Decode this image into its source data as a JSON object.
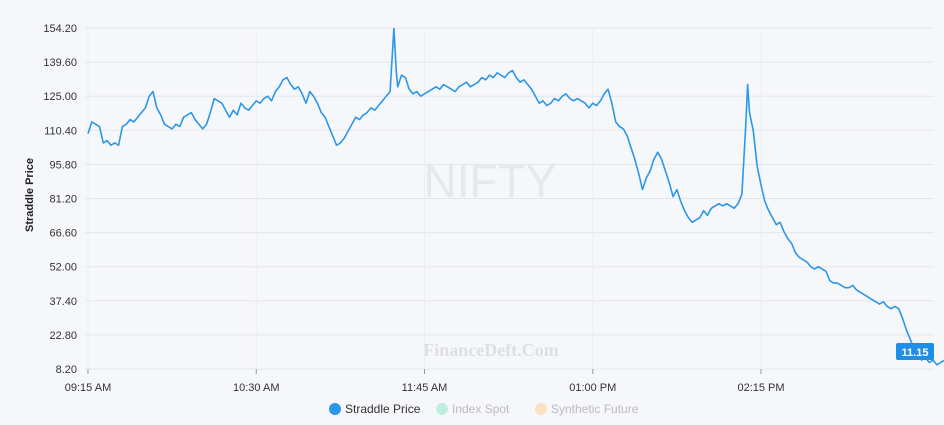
{
  "chart_data": {
    "type": "line",
    "watermark": "NIFTY",
    "credit": "FinanceDeft.Com",
    "ylabel": "Straddle Price",
    "xlabel": "",
    "ylim": [
      8.2,
      154.2
    ],
    "grid": true,
    "y_ticks": [
      "154.20",
      "139.60",
      "125.00",
      "110.40",
      "95.80",
      "81.20",
      "66.60",
      "52.00",
      "37.40",
      "22.80",
      "8.20"
    ],
    "x_ticks": [
      "09:15 AM",
      "10:30 AM",
      "11:45 AM",
      "01:00 PM",
      "02:15 PM"
    ],
    "last_value_label": "11.15",
    "legend": [
      {
        "name": "Straddle Price",
        "color": "#2c97e8",
        "active": true
      },
      {
        "name": "Index Spot",
        "color": "#bfeedd",
        "active": false
      },
      {
        "name": "Synthetic Future",
        "color": "#f7e3c2",
        "active": false
      }
    ],
    "series": [
      {
        "name": "Straddle Price",
        "color": "#2c97e8",
        "points": [
          [
            0,
            109
          ],
          [
            1,
            114
          ],
          [
            2,
            113
          ],
          [
            3,
            112
          ],
          [
            4,
            105
          ],
          [
            5,
            106
          ],
          [
            6,
            104
          ],
          [
            7,
            105
          ],
          [
            8,
            104
          ],
          [
            9,
            112
          ],
          [
            10,
            113
          ],
          [
            11,
            115
          ],
          [
            12,
            114
          ],
          [
            13,
            116
          ],
          [
            14,
            118
          ],
          [
            15,
            120
          ],
          [
            16,
            125
          ],
          [
            17,
            127
          ],
          [
            18,
            120
          ],
          [
            19,
            117
          ],
          [
            20,
            113
          ],
          [
            21,
            112
          ],
          [
            22,
            111
          ],
          [
            23,
            113
          ],
          [
            24,
            112
          ],
          [
            25,
            116
          ],
          [
            26,
            117
          ],
          [
            27,
            118
          ],
          [
            28,
            115
          ],
          [
            29,
            113
          ],
          [
            30,
            111
          ],
          [
            31,
            113
          ],
          [
            32,
            118
          ],
          [
            33,
            124
          ],
          [
            34,
            123
          ],
          [
            35,
            122
          ],
          [
            36,
            119
          ],
          [
            37,
            116
          ],
          [
            38,
            119
          ],
          [
            39,
            117
          ],
          [
            40,
            122
          ],
          [
            41,
            120
          ],
          [
            42,
            119
          ],
          [
            43,
            121
          ],
          [
            44,
            123
          ],
          [
            45,
            122
          ],
          [
            46,
            124
          ],
          [
            47,
            125
          ],
          [
            48,
            123
          ],
          [
            49,
            127
          ],
          [
            50,
            129
          ],
          [
            51,
            132
          ],
          [
            52,
            133
          ],
          [
            53,
            130
          ],
          [
            54,
            128
          ],
          [
            55,
            129
          ],
          [
            56,
            126
          ],
          [
            57,
            122
          ],
          [
            58,
            127
          ],
          [
            59,
            125
          ],
          [
            60,
            122
          ],
          [
            61,
            118
          ],
          [
            62,
            116
          ],
          [
            63,
            112
          ],
          [
            64,
            108
          ],
          [
            65,
            104
          ],
          [
            66,
            105
          ],
          [
            67,
            107
          ],
          [
            68,
            110
          ],
          [
            69,
            113
          ],
          [
            70,
            116
          ],
          [
            71,
            115
          ],
          [
            72,
            117
          ],
          [
            73,
            118
          ],
          [
            74,
            120
          ],
          [
            75,
            119
          ],
          [
            76,
            121
          ],
          [
            77,
            123
          ],
          [
            78,
            125
          ],
          [
            79,
            127
          ],
          [
            80,
            154
          ],
          [
            80.6,
            136
          ],
          [
            81,
            129
          ],
          [
            82,
            134
          ],
          [
            83,
            133
          ],
          [
            84,
            128
          ],
          [
            85,
            126
          ],
          [
            86,
            127
          ],
          [
            87,
            125
          ],
          [
            88,
            126
          ],
          [
            89,
            127
          ],
          [
            90,
            128
          ],
          [
            91,
            129
          ],
          [
            92,
            128
          ],
          [
            93,
            130
          ],
          [
            94,
            129
          ],
          [
            95,
            128
          ],
          [
            96,
            127
          ],
          [
            97,
            129
          ],
          [
            98,
            130
          ],
          [
            99,
            131
          ],
          [
            100,
            129
          ],
          [
            101,
            130
          ],
          [
            102,
            131
          ],
          [
            103,
            133
          ],
          [
            104,
            132
          ],
          [
            105,
            134
          ],
          [
            106,
            133
          ],
          [
            107,
            135
          ],
          [
            108,
            134
          ],
          [
            109,
            133
          ],
          [
            110,
            135
          ],
          [
            111,
            136
          ],
          [
            112,
            133
          ],
          [
            113,
            131
          ],
          [
            114,
            132
          ],
          [
            115,
            130
          ],
          [
            116,
            128
          ],
          [
            117,
            125
          ],
          [
            118,
            122
          ],
          [
            119,
            123
          ],
          [
            120,
            121
          ],
          [
            121,
            122
          ],
          [
            122,
            124
          ],
          [
            123,
            123
          ],
          [
            124,
            125
          ],
          [
            125,
            126
          ],
          [
            126,
            124
          ],
          [
            127,
            123
          ],
          [
            128,
            124
          ],
          [
            129,
            123
          ],
          [
            130,
            122
          ],
          [
            131,
            120
          ],
          [
            132,
            122
          ],
          [
            133,
            121
          ],
          [
            134,
            123
          ],
          [
            135,
            126
          ],
          [
            136,
            128
          ],
          [
            137,
            122
          ],
          [
            138,
            114
          ],
          [
            139,
            112
          ],
          [
            140,
            111
          ],
          [
            141,
            108
          ],
          [
            142,
            103
          ],
          [
            143,
            98
          ],
          [
            144,
            92
          ],
          [
            145,
            85
          ],
          [
            146,
            90
          ],
          [
            147,
            93
          ],
          [
            148,
            98
          ],
          [
            149,
            101
          ],
          [
            150,
            98
          ],
          [
            151,
            93
          ],
          [
            152,
            88
          ],
          [
            153,
            82
          ],
          [
            154,
            85
          ],
          [
            155,
            80
          ],
          [
            156,
            76
          ],
          [
            157,
            73
          ],
          [
            158,
            71
          ],
          [
            159,
            72
          ],
          [
            160,
            73
          ],
          [
            161,
            76
          ],
          [
            162,
            74
          ],
          [
            163,
            77
          ],
          [
            164,
            78
          ],
          [
            165,
            79
          ],
          [
            166,
            78
          ],
          [
            167,
            79
          ],
          [
            168,
            78
          ],
          [
            169,
            77
          ],
          [
            170,
            79
          ],
          [
            171,
            83
          ],
          [
            172,
            112
          ],
          [
            172.5,
            130
          ],
          [
            173,
            118
          ],
          [
            174,
            110
          ],
          [
            175,
            95
          ],
          [
            176,
            87
          ],
          [
            177,
            80
          ],
          [
            178,
            76
          ],
          [
            179,
            73
          ],
          [
            180,
            70
          ],
          [
            181,
            71
          ],
          [
            182,
            67
          ],
          [
            183,
            64
          ],
          [
            184,
            62
          ],
          [
            185,
            58
          ],
          [
            186,
            56
          ],
          [
            187,
            55
          ],
          [
            188,
            54
          ],
          [
            189,
            52
          ],
          [
            190,
            51
          ],
          [
            191,
            52
          ],
          [
            192,
            51
          ],
          [
            193,
            50
          ],
          [
            194,
            46
          ],
          [
            195,
            45
          ],
          [
            196,
            45
          ],
          [
            197,
            44
          ],
          [
            198,
            43
          ],
          [
            199,
            43
          ],
          [
            200,
            44
          ],
          [
            201,
            42
          ],
          [
            202,
            41
          ],
          [
            203,
            40
          ],
          [
            204,
            39
          ],
          [
            205,
            38
          ],
          [
            206,
            37
          ],
          [
            207,
            36
          ],
          [
            208,
            37
          ],
          [
            209,
            35
          ],
          [
            210,
            34
          ],
          [
            211,
            35
          ],
          [
            212,
            34
          ],
          [
            213,
            30
          ],
          [
            214,
            25
          ],
          [
            215,
            21
          ],
          [
            216,
            17
          ],
          [
            217,
            14
          ],
          [
            218,
            12
          ],
          [
            219,
            13
          ],
          [
            220,
            11
          ],
          [
            221,
            12
          ],
          [
            222,
            10
          ],
          [
            223,
            11
          ],
          [
            224,
            12
          ],
          [
            225,
            11.15
          ]
        ]
      }
    ]
  }
}
